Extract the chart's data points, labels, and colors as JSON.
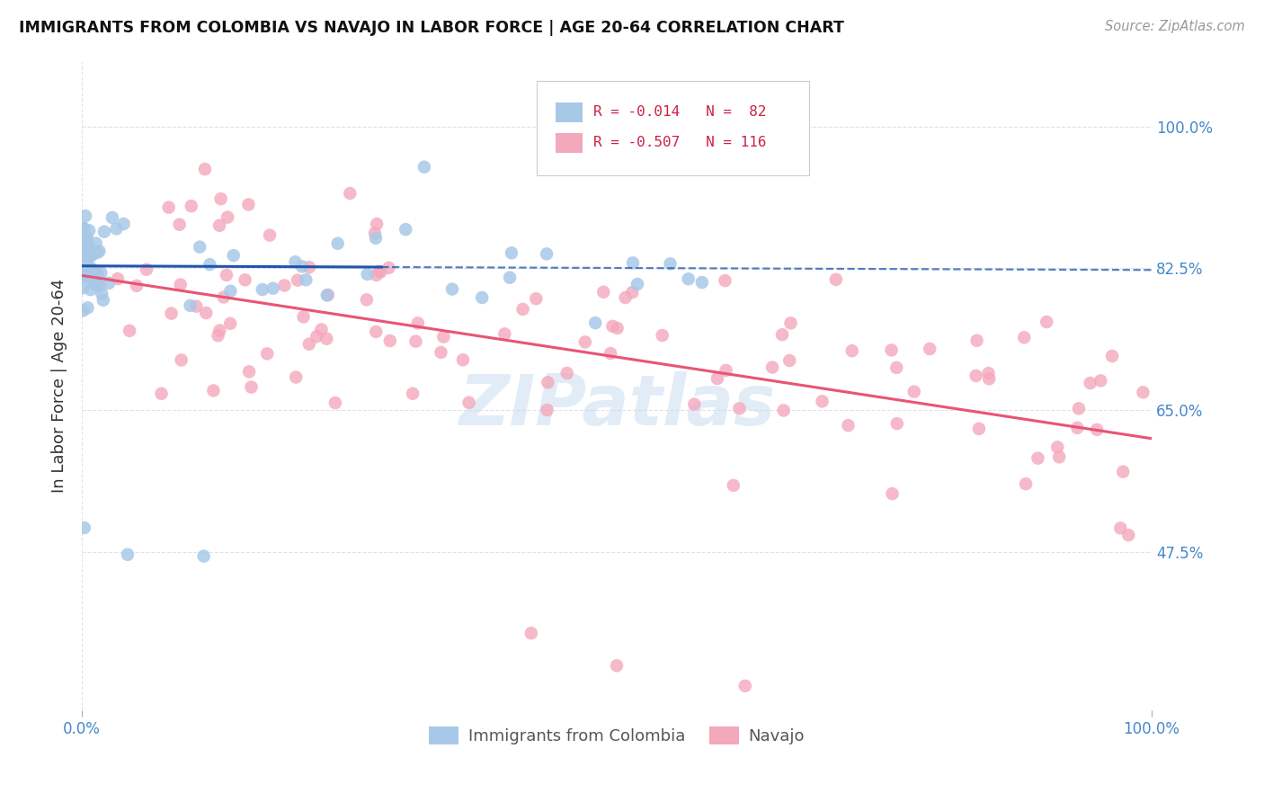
{
  "title": "IMMIGRANTS FROM COLOMBIA VS NAVAJO IN LABOR FORCE | AGE 20-64 CORRELATION CHART",
  "source": "Source: ZipAtlas.com",
  "ylabel": "In Labor Force | Age 20-64",
  "xlim": [
    0.0,
    1.0
  ],
  "ylim": [
    0.28,
    1.08
  ],
  "yticks": [
    0.475,
    0.65,
    0.825,
    1.0
  ],
  "ytick_labels": [
    "47.5%",
    "65.0%",
    "82.5%",
    "100.0%"
  ],
  "colombia_R": -0.014,
  "colombia_N": 82,
  "navajo_R": -0.507,
  "navajo_N": 116,
  "colombia_color": "#a8c8e8",
  "navajo_color": "#f4a8bc",
  "colombia_line_color": "#2255aa",
  "navajo_line_color": "#e85575",
  "legend_R_color": "#cc2244",
  "background_color": "#ffffff",
  "grid_color": "#ddddee",
  "watermark": "ZIPatlas",
  "tick_color": "#4488cc",
  "title_color": "#111111",
  "source_color": "#999999",
  "ylabel_color": "#333333"
}
